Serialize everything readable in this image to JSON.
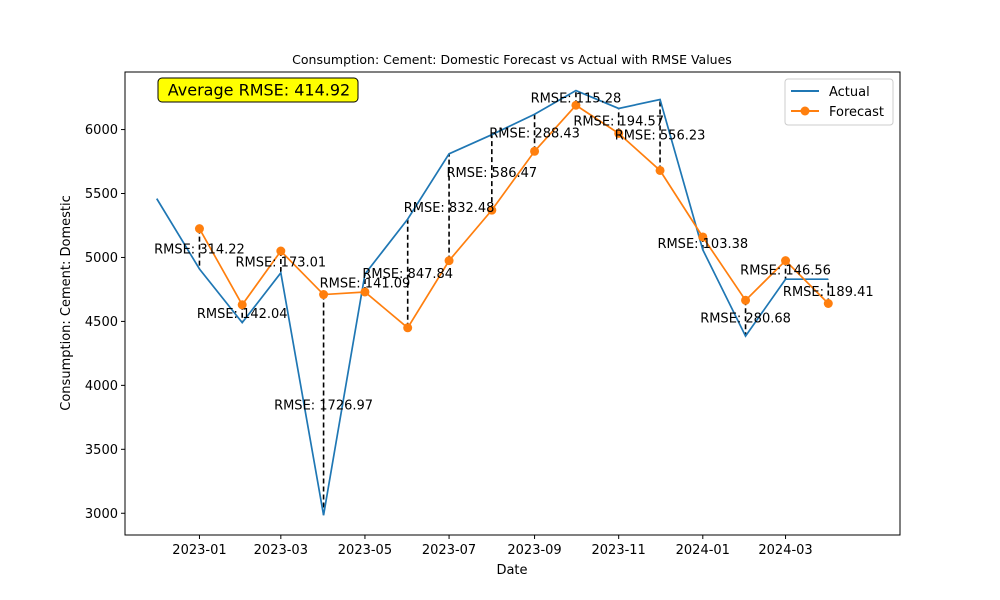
{
  "chart_data": {
    "type": "line",
    "title": "Consumption: Cement: Domestic Forecast vs Actual with RMSE Values",
    "xlabel": "Date",
    "ylabel": "Consumption: Cement: Domestic",
    "ylim": [
      2830,
      6450
    ],
    "xlim": [
      "2022-11-08",
      "2024-05-23"
    ],
    "grid": false,
    "legend_position": "top-right",
    "x_ticks": [
      "2023-01",
      "2023-03",
      "2023-05",
      "2023-07",
      "2023-09",
      "2023-11",
      "2024-01",
      "2024-03"
    ],
    "y_ticks": [
      3000,
      3500,
      4000,
      4500,
      5000,
      5500,
      6000
    ],
    "average_rmse_label": "Average RMSE: 414.92",
    "series": [
      {
        "name": "Actual",
        "color": "#1f77b4",
        "marker": "none",
        "x": [
          "2022-12-01",
          "2023-01-01",
          "2023-02-01",
          "2023-03-01",
          "2023-04-01",
          "2023-05-01",
          "2023-06-01",
          "2023-07-01",
          "2023-08-01",
          "2023-09-01",
          "2023-10-01",
          "2023-11-01",
          "2023-12-01",
          "2024-01-01",
          "2024-02-01",
          "2024-03-01",
          "2024-04-01"
        ],
        "values": [
          5460,
          4910,
          4490,
          4880,
          2985,
          4870,
          5300,
          5810,
          5960,
          6120,
          6305,
          6165,
          6235,
          5060,
          4385,
          4830,
          4830
        ]
      },
      {
        "name": "Forecast",
        "color": "#ff7f0e",
        "marker": "circle",
        "x": [
          "2023-01-01",
          "2023-02-01",
          "2023-03-01",
          "2023-04-01",
          "2023-05-01",
          "2023-06-01",
          "2023-07-01",
          "2023-08-01",
          "2023-09-01",
          "2023-10-01",
          "2023-11-01",
          "2023-12-01",
          "2024-01-01",
          "2024-02-01",
          "2024-03-01",
          "2024-04-01"
        ],
        "values": [
          5225,
          4630,
          5050,
          4710,
          4730,
          4450,
          4975,
          5370,
          5830,
          6190,
          5970,
          5680,
          5160,
          4665,
          4975,
          4640
        ]
      }
    ],
    "rmse_annotations": [
      {
        "x": "2023-01-01",
        "label": "RMSE: 314.22"
      },
      {
        "x": "2023-02-01",
        "label": "RMSE: 142.04"
      },
      {
        "x": "2023-03-01",
        "label": "RMSE: 173.01"
      },
      {
        "x": "2023-04-01",
        "label": "RMSE: 1726.97"
      },
      {
        "x": "2023-05-01",
        "label": "RMSE: 141.09"
      },
      {
        "x": "2023-06-01",
        "label": "RMSE: 847.84"
      },
      {
        "x": "2023-07-01",
        "label": "RMSE: 832.48"
      },
      {
        "x": "2023-08-01",
        "label": "RMSE: 586.47"
      },
      {
        "x": "2023-09-01",
        "label": "RMSE: 288.43"
      },
      {
        "x": "2023-10-01",
        "label": "RMSE: 115.28"
      },
      {
        "x": "2023-11-01",
        "label": "RMSE: 194.57"
      },
      {
        "x": "2023-12-01",
        "label": "RMSE: 556.23"
      },
      {
        "x": "2024-01-01",
        "label": "RMSE: 103.38"
      },
      {
        "x": "2024-02-01",
        "label": "RMSE: 280.68"
      },
      {
        "x": "2024-03-01",
        "label": "RMSE: 146.56"
      },
      {
        "x": "2024-04-01",
        "label": "RMSE: 189.41"
      }
    ]
  }
}
